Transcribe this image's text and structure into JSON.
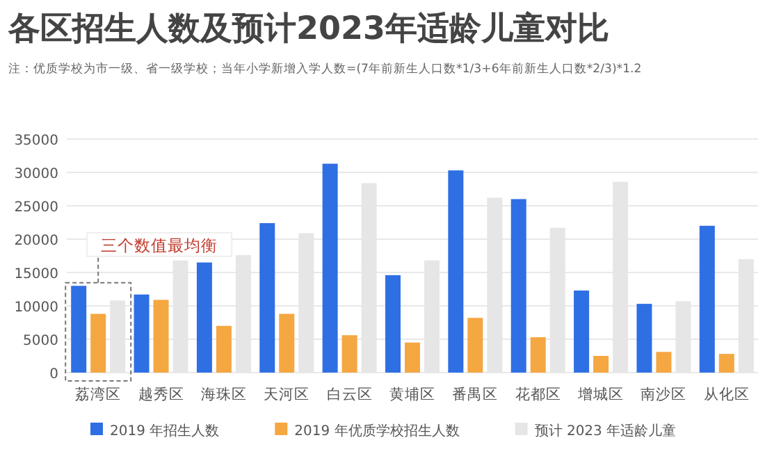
{
  "chart_data": {
    "type": "bar",
    "title": "各区招生人数及预计2023年适龄儿童对比",
    "annotations": [
      "注：优质学校为市一级、省一级学校；当年小学新增入学人数=(7年前新生人口数*1/3+6年前新生人口数*2/3)*1.2",
      "三个数值最均衡"
    ],
    "categories": [
      "荔湾区",
      "越秀区",
      "海珠区",
      "天河区",
      "白云区",
      "黄埔区",
      "番禺区",
      "花都区",
      "增城区",
      "南沙区",
      "从化区"
    ],
    "series": [
      {
        "name": "2019 年招生人数",
        "color": "#2f6fe4",
        "values": [
          13000,
          11700,
          16500,
          22400,
          31300,
          14600,
          30300,
          26000,
          12300,
          10300,
          22000
        ]
      },
      {
        "name": "2019 年优质学校招生人数",
        "color": "#f5a742",
        "values": [
          8800,
          10900,
          7000,
          8800,
          5600,
          4500,
          8200,
          5300,
          2500,
          3100,
          2800
        ]
      },
      {
        "name": "预计 2023 年适龄儿童",
        "color": "#e6e6e6",
        "values": [
          10800,
          16800,
          17600,
          20900,
          28400,
          16800,
          26200,
          21700,
          28600,
          10700,
          17000
        ]
      }
    ],
    "ylim": [
      0,
      35000
    ],
    "yticks": [
      0,
      5000,
      10000,
      15000,
      20000,
      25000,
      30000,
      35000
    ],
    "grid": "y",
    "legend": "bottom"
  }
}
